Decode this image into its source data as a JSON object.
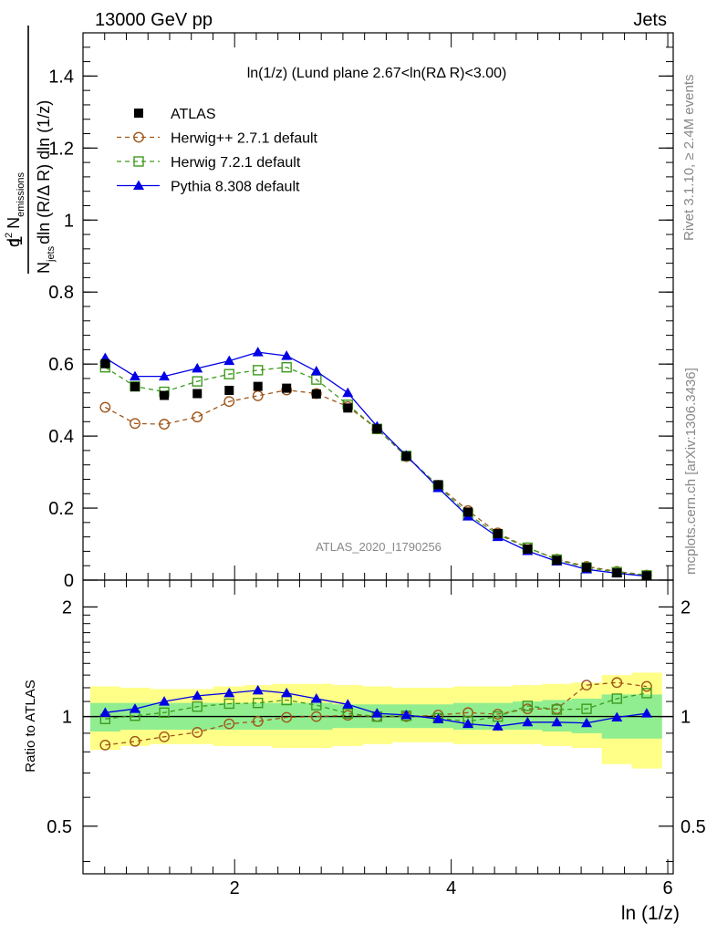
{
  "header": {
    "left": "13000 GeV pp",
    "right": "Jets"
  },
  "side_labels": {
    "rivet": "Rivet 3.1.10, ≥ 2.4M events",
    "mcplots": "mcplots.cern.ch [arXiv:1306.3436]"
  },
  "plot_title": "ln(1/z) (Lund plane 2.67<ln(RΔ R)<3.00)",
  "watermark": "ATLAS_2020_I1790256",
  "ylabel_top": {
    "one": "1",
    "njets": "N",
    "njets_sub": "jets",
    "dln": "dln (R/Δ R)",
    "denom_end": "dln (1/z)",
    "d2": "d",
    "d2_sup": "2",
    "nemis": "N",
    "nemis_sub": "emissions"
  },
  "ylabel_bottom": "Ratio to ATLAS",
  "xlabel": "ln (1/z)",
  "legend": [
    {
      "label": "ATLAS",
      "marker": "filled-square",
      "color": "#000000"
    },
    {
      "label": "Herwig++ 2.7.1 default",
      "marker": "open-circle",
      "color": "#a0561a"
    },
    {
      "label": "Herwig 7.2.1 default",
      "marker": "open-square",
      "color": "#3f9a1f"
    },
    {
      "label": "Pythia 8.308 default",
      "marker": "filled-triangle",
      "color": "#0000e6"
    }
  ],
  "chart_data": [
    {
      "type": "scatter",
      "panel": "main",
      "xlim": [
        0.6,
        6.05
      ],
      "ylim": [
        0,
        1.52
      ],
      "yticks": [
        0,
        0.2,
        0.4,
        0.6,
        0.8,
        1,
        1.2,
        1.4
      ],
      "ytick_labels": [
        "0",
        "0.2",
        "0.4",
        "0.6",
        "0.8",
        "1",
        "1.2",
        "1.4"
      ],
      "x": [
        0.805,
        1.08,
        1.35,
        1.655,
        1.95,
        2.215,
        2.48,
        2.755,
        3.045,
        3.315,
        3.585,
        3.88,
        4.155,
        4.43,
        4.705,
        4.975,
        5.25,
        5.53,
        5.805
      ],
      "series": [
        {
          "name": "ATLAS",
          "values": [
            0.601,
            0.537,
            0.513,
            0.518,
            0.527,
            0.538,
            0.533,
            0.517,
            0.478,
            0.42,
            0.344,
            0.265,
            0.189,
            0.129,
            0.086,
            0.055,
            0.035,
            0.02,
            0.012
          ]
        },
        {
          "name": "Herwig++ 2.7.1 default",
          "values": [
            0.48,
            0.435,
            0.433,
            0.453,
            0.496,
            0.512,
            0.528,
            0.518,
            0.482,
            0.42,
            0.343,
            0.263,
            0.193,
            0.131,
            0.09,
            0.058,
            0.038,
            0.024,
            0.014
          ]
        },
        {
          "name": "Herwig 7.2.1 default",
          "values": [
            0.591,
            0.538,
            0.523,
            0.552,
            0.572,
            0.583,
            0.591,
            0.557,
            0.487,
            0.42,
            0.345,
            0.262,
            0.183,
            0.127,
            0.09,
            0.057,
            0.035,
            0.022,
            0.013
          ]
        },
        {
          "name": "Pythia 8.308 default",
          "values": [
            0.617,
            0.566,
            0.566,
            0.588,
            0.609,
            0.633,
            0.623,
            0.58,
            0.52,
            0.427,
            0.346,
            0.256,
            0.177,
            0.12,
            0.081,
            0.052,
            0.03,
            0.019,
            0.011
          ]
        }
      ]
    },
    {
      "type": "scatter",
      "panel": "ratio",
      "xlim": [
        0.6,
        6.05
      ],
      "ylim": [
        0.37,
        2.37
      ],
      "log_y": true,
      "yticks": [
        0.5,
        1,
        2
      ],
      "ytick_labels": [
        "0.5",
        "1",
        "2"
      ],
      "xticks": [
        2,
        4,
        6
      ],
      "xtick_labels": [
        "2",
        "4",
        "6"
      ],
      "x": [
        0.805,
        1.08,
        1.35,
        1.655,
        1.95,
        2.215,
        2.48,
        2.755,
        3.045,
        3.315,
        3.585,
        3.88,
        4.155,
        4.43,
        4.705,
        4.975,
        5.25,
        5.53,
        5.805
      ],
      "bands": {
        "green": {
          "color": "#90ee90",
          "lo": [
            0.91,
            0.92,
            0.92,
            0.92,
            0.92,
            0.92,
            0.92,
            0.92,
            0.93,
            0.93,
            0.93,
            0.93,
            0.92,
            0.92,
            0.92,
            0.91,
            0.9,
            0.87,
            0.87
          ],
          "hi": [
            1.09,
            1.09,
            1.09,
            1.09,
            1.09,
            1.09,
            1.09,
            1.09,
            1.08,
            1.08,
            1.08,
            1.08,
            1.09,
            1.09,
            1.1,
            1.11,
            1.12,
            1.15,
            1.15
          ]
        },
        "yellow": {
          "color": "#ffff88",
          "lo": [
            0.81,
            0.83,
            0.84,
            0.84,
            0.83,
            0.83,
            0.82,
            0.82,
            0.83,
            0.84,
            0.85,
            0.85,
            0.84,
            0.84,
            0.84,
            0.83,
            0.82,
            0.74,
            0.72
          ],
          "hi": [
            1.21,
            1.2,
            1.19,
            1.19,
            1.21,
            1.22,
            1.23,
            1.23,
            1.22,
            1.21,
            1.2,
            1.2,
            1.21,
            1.21,
            1.22,
            1.23,
            1.24,
            1.3,
            1.32
          ]
        }
      },
      "series": [
        {
          "name": "Herwig++ 2.7.1 default",
          "values": [
            0.835,
            0.855,
            0.88,
            0.905,
            0.955,
            0.97,
            0.995,
            1.0,
            1.008,
            1.0,
            1.0,
            1.01,
            1.025,
            1.015,
            1.05,
            1.05,
            1.22,
            1.24,
            1.21
          ]
        },
        {
          "name": "Herwig 7.2.1 default",
          "values": [
            0.985,
            1.005,
            1.025,
            1.065,
            1.085,
            1.09,
            1.11,
            1.075,
            1.02,
            1.0,
            1.005,
            0.99,
            0.97,
            1.0,
            1.07,
            1.045,
            1.05,
            1.12,
            1.16
          ]
        },
        {
          "name": "Pythia 8.308 default",
          "values": [
            1.025,
            1.05,
            1.1,
            1.14,
            1.16,
            1.18,
            1.16,
            1.12,
            1.08,
            1.02,
            1.01,
            0.985,
            0.955,
            0.94,
            0.965,
            0.965,
            0.96,
            0.995,
            1.02
          ]
        }
      ]
    }
  ]
}
